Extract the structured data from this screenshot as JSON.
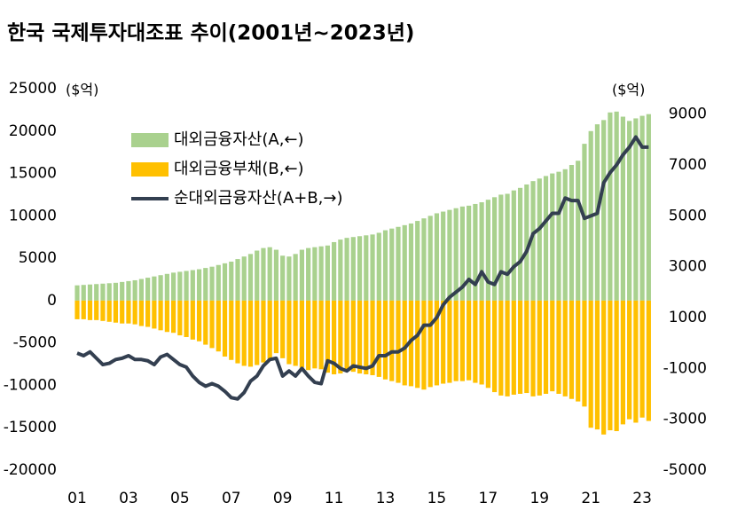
{
  "chart_data": {
    "type": "bar-line",
    "title": "한국 국제투자대조표 추이(2001년~2023년)",
    "ylabel": "($억)",
    "y2label": "($억)",
    "categories": [
      "01",
      null,
      null,
      null,
      null,
      null,
      null,
      null,
      "03",
      null,
      null,
      null,
      null,
      null,
      null,
      null,
      "05",
      null,
      null,
      null,
      null,
      null,
      null,
      null,
      "07",
      null,
      null,
      null,
      null,
      null,
      null,
      null,
      "09",
      null,
      null,
      null,
      null,
      null,
      null,
      null,
      "11",
      null,
      null,
      null,
      null,
      null,
      null,
      null,
      "13",
      null,
      null,
      null,
      null,
      null,
      null,
      null,
      "15",
      null,
      null,
      null,
      null,
      null,
      null,
      null,
      "17",
      null,
      null,
      null,
      null,
      null,
      null,
      null,
      "19",
      null,
      null,
      null,
      null,
      null,
      null,
      null,
      "21",
      null,
      null,
      null,
      null,
      null,
      null,
      null,
      "23",
      null
    ],
    "series": [
      {
        "name": "대외금융자산(A,←)",
        "color": "#a9d18e",
        "kind": "bar",
        "axis": "y",
        "values": [
          1800,
          1850,
          1900,
          1950,
          2000,
          2050,
          2100,
          2200,
          2300,
          2400,
          2550,
          2700,
          2850,
          3000,
          3150,
          3300,
          3400,
          3500,
          3600,
          3700,
          3850,
          4000,
          4200,
          4400,
          4600,
          4900,
          5200,
          5500,
          5900,
          6200,
          6300,
          6000,
          5300,
          5200,
          5500,
          6000,
          6200,
          6300,
          6400,
          6500,
          6900,
          7200,
          7400,
          7500,
          7600,
          7700,
          7800,
          8000,
          8300,
          8500,
          8700,
          8900,
          9100,
          9400,
          9700,
          10000,
          10300,
          10500,
          10700,
          10900,
          11100,
          11200,
          11400,
          11600,
          11900,
          12200,
          12500,
          12600,
          13000,
          13300,
          13700,
          14100,
          14400,
          14700,
          15000,
          15200,
          15500,
          16000,
          16500,
          18500,
          20000,
          20800,
          21300,
          22200,
          22300,
          21700,
          21200,
          21500,
          21800,
          22000
        ]
      },
      {
        "name": "대외금융부채(B,←)",
        "color": "#ffc000",
        "kind": "bar",
        "axis": "y",
        "values": [
          -2200,
          -2200,
          -2300,
          -2300,
          -2400,
          -2500,
          -2600,
          -2700,
          -2700,
          -2800,
          -3000,
          -3100,
          -3300,
          -3500,
          -3700,
          -3800,
          -4100,
          -4300,
          -4600,
          -4800,
          -5200,
          -5600,
          -6000,
          -6600,
          -7000,
          -7400,
          -7700,
          -7800,
          -7600,
          -7300,
          -6900,
          -6200,
          -6800,
          -7500,
          -7700,
          -7900,
          -8200,
          -8000,
          -8100,
          -8500,
          -8700,
          -8600,
          -8300,
          -8400,
          -8600,
          -8700,
          -8800,
          -9000,
          -9300,
          -9500,
          -9700,
          -10000,
          -10100,
          -10300,
          -10500,
          -10200,
          -10000,
          -9800,
          -9700,
          -9500,
          -9500,
          -9400,
          -9700,
          -9900,
          -10300,
          -10800,
          -11200,
          -11300,
          -11100,
          -11000,
          -10900,
          -11300,
          -11200,
          -11000,
          -10700,
          -11000,
          -11300,
          -11600,
          -11900,
          -12500,
          -15000,
          -15200,
          -15800,
          -15300,
          -15400,
          -14600,
          -14000,
          -14400,
          -13800,
          -14200
        ]
      },
      {
        "name": "순대외금융자산(A+B,→)",
        "color": "#333f50",
        "kind": "line",
        "axis": "y2",
        "values": [
          -400,
          -500,
          -350,
          -600,
          -850,
          -800,
          -650,
          -600,
          -500,
          -650,
          -650,
          -700,
          -850,
          -550,
          -450,
          -650,
          -850,
          -950,
          -1300,
          -1550,
          -1700,
          -1600,
          -1700,
          -1900,
          -2150,
          -2200,
          -1950,
          -1500,
          -1300,
          -900,
          -650,
          -600,
          -1300,
          -1100,
          -1300,
          -1000,
          -1300,
          -1550,
          -1600,
          -700,
          -800,
          -1000,
          -1100,
          -900,
          -950,
          -1000,
          -900,
          -500,
          -500,
          -350,
          -350,
          -200,
          100,
          300,
          700,
          700,
          1000,
          1500,
          1800,
          2000,
          2200,
          2500,
          2300,
          2800,
          2400,
          2300,
          2800,
          2700,
          3000,
          3200,
          3600,
          4300,
          4500,
          4800,
          5100,
          5100,
          5700,
          5600,
          5600,
          4900,
          5000,
          5100,
          6300,
          6700,
          7000,
          7400,
          7700,
          8100,
          7700,
          7700
        ]
      }
    ],
    "ylim": [
      -20000,
      25000
    ],
    "yticks": [
      -20000,
      -15000,
      -10000,
      -5000,
      0,
      5000,
      10000,
      15000,
      20000,
      25000
    ],
    "y2lim": [
      -5000,
      10000
    ],
    "y2ticks": [
      -5000,
      -3000,
      -1000,
      1000,
      3000,
      5000,
      7000,
      9000
    ],
    "legend": "upper left",
    "grid": false
  }
}
